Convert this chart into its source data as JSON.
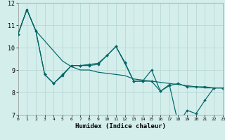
{
  "xlabel": "Humidex (Indice chaleur)",
  "background_color": "#d4eeec",
  "grid_color": "#b8d8d6",
  "line_color": "#006666",
  "xlim": [
    0,
    23
  ],
  "ylim": [
    7,
    12
  ],
  "x_ticks": [
    0,
    1,
    2,
    3,
    4,
    5,
    6,
    7,
    8,
    9,
    10,
    11,
    12,
    13,
    14,
    15,
    16,
    17,
    18,
    19,
    20,
    21,
    22,
    23
  ],
  "y_ticks": [
    7,
    8,
    9,
    10,
    11,
    12
  ],
  "line_straight": [
    10.6,
    11.7,
    10.75,
    10.3,
    9.85,
    9.4,
    9.15,
    9.0,
    9.0,
    8.9,
    8.85,
    8.8,
    8.75,
    8.6,
    8.55,
    8.5,
    8.45,
    8.4,
    8.35,
    8.3,
    8.25,
    8.2,
    8.2,
    8.2
  ],
  "line_jagged1": [
    10.6,
    11.7,
    10.75,
    8.8,
    8.4,
    8.8,
    9.2,
    9.2,
    9.25,
    9.3,
    9.65,
    10.05,
    9.35,
    8.5,
    8.5,
    9.0,
    8.05,
    8.35,
    6.6,
    7.2,
    7.05,
    7.65,
    8.2,
    8.2
  ],
  "line_jagged2": [
    10.6,
    11.7,
    10.75,
    8.8,
    8.4,
    8.75,
    9.2,
    9.2,
    9.2,
    9.25,
    9.65,
    10.05,
    9.3,
    8.5,
    8.5,
    8.5,
    8.05,
    8.3,
    8.4,
    8.25,
    8.25,
    8.25,
    8.2,
    8.2
  ]
}
